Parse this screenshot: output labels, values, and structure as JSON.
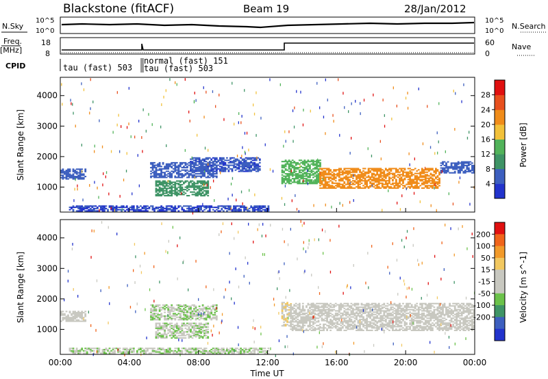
{
  "header": {
    "station": "Blackstone (fitACF)",
    "beam": "Beam 19",
    "date": "28/Jan/2012"
  },
  "left_labels": {
    "nsky": "N.Sky",
    "nsky_ticks": [
      "10^5",
      "10^0"
    ],
    "freq": "Freq.",
    "freq_unit": "[MHz]",
    "freq_ticks": [
      "18",
      "8"
    ],
    "cpid": "CPID"
  },
  "right_labels": {
    "nsky_ticks": [
      "10^5",
      "10^0"
    ],
    "nsearch": "N.Search",
    "nave_ticks": [
      "60",
      "0"
    ],
    "nave": "Nave"
  },
  "cpid_labels": {
    "first": "tau (fast) 503",
    "second_top": "normal (fast) 151",
    "second_bottom": "tau (fast) 503"
  },
  "time_axis": {
    "label": "Time UT",
    "ticks": [
      "00:00",
      "04:00",
      "08:00",
      "12:00",
      "16:00",
      "20:00",
      "00:00"
    ]
  },
  "range_ticks": [
    "4000",
    "3000",
    "2000",
    "1000"
  ],
  "colors": {
    "power_scale": [
      "#2233cc",
      "#3d5fbf",
      "#3f9466",
      "#52b35a",
      "#f2c13a",
      "#f08c1a",
      "#e8501e",
      "#e01010"
    ],
    "velocity_scale": [
      "#e01010",
      "#f0641a",
      "#f29a2a",
      "#f2c860",
      "#c8c8c0",
      "#c8c8c0",
      "#6bc24a",
      "#3f9466",
      "#3d5fbf",
      "#2233cc"
    ]
  },
  "chart_data": [
    {
      "type": "heatmap",
      "title": "",
      "xlabel": "",
      "ylabel": "Slant Range [km]",
      "xlim": [
        "00:00",
        "24:00"
      ],
      "ylim": [
        180,
        4600
      ],
      "yticks": [
        1000,
        2000,
        3000,
        4000
      ],
      "colorbar": {
        "label": "Power [dB]",
        "ticks": [
          "4",
          "8",
          "12",
          "16",
          "20",
          "24",
          "28"
        ],
        "range": [
          0,
          32
        ]
      },
      "features": [
        {
          "t_start": 0.0,
          "t_end": 1.5,
          "range_min": 1250,
          "range_max": 1600,
          "value": 6
        },
        {
          "t_start": 5.2,
          "t_end": 9.0,
          "range_min": 1300,
          "range_max": 1800,
          "value": 6
        },
        {
          "t_start": 5.5,
          "t_end": 8.5,
          "range_min": 700,
          "range_max": 1200,
          "value": 10
        },
        {
          "t_start": 7.5,
          "t_end": 11.5,
          "range_min": 1500,
          "range_max": 1950,
          "value": 5
        },
        {
          "t_start": 0.5,
          "t_end": 12.0,
          "range_min": 200,
          "range_max": 400,
          "value": 4
        },
        {
          "t_start": 12.8,
          "t_end": 15.0,
          "range_min": 1100,
          "range_max": 1900,
          "value": 14
        },
        {
          "t_start": 15.0,
          "t_end": 22.0,
          "range_min": 950,
          "range_max": 1600,
          "value": 22
        },
        {
          "t_start": 22.0,
          "t_end": 24.0,
          "range_min": 1450,
          "range_max": 1850,
          "value": 6
        }
      ]
    },
    {
      "type": "heatmap",
      "title": "",
      "xlabel": "Time UT",
      "ylabel": "Slant Range [km]",
      "xlim": [
        "00:00",
        "24:00"
      ],
      "ylim": [
        180,
        4600
      ],
      "yticks": [
        1000,
        2000,
        3000,
        4000
      ],
      "colorbar": {
        "label": "Velocity [m s^-1]",
        "ticks": [
          "200",
          "100",
          "50",
          "15",
          "-15",
          "-50",
          "-100",
          "-200"
        ],
        "range": [
          -250,
          250
        ]
      },
      "features": [
        {
          "t_start": 0.0,
          "t_end": 1.5,
          "range_min": 1250,
          "range_max": 1600,
          "value": 0
        },
        {
          "t_start": 5.2,
          "t_end": 9.0,
          "range_min": 1300,
          "range_max": 1800,
          "value": -40
        },
        {
          "t_start": 5.5,
          "t_end": 8.5,
          "range_min": 700,
          "range_max": 1200,
          "value": -40
        },
        {
          "t_start": 0.5,
          "t_end": 12.0,
          "range_min": 200,
          "range_max": 400,
          "value": -40
        },
        {
          "t_start": 12.8,
          "t_end": 13.3,
          "range_min": 1100,
          "range_max": 1900,
          "value": 40
        },
        {
          "t_start": 13.3,
          "t_end": 24.0,
          "range_min": 950,
          "range_max": 1850,
          "value": 0
        }
      ]
    }
  ]
}
